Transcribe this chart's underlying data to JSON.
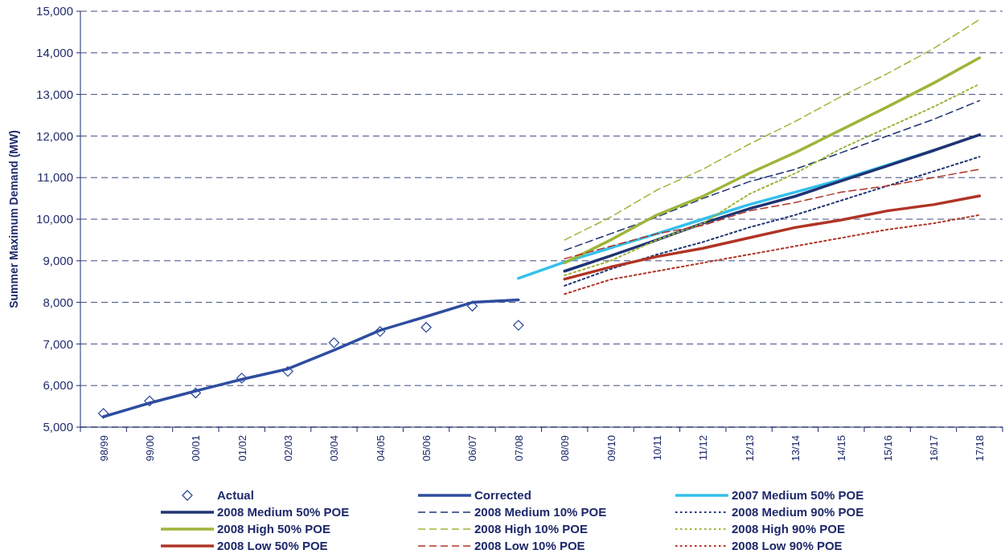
{
  "chart_data": {
    "type": "line",
    "ylabel": "Summer Maximum Demand  (MW)",
    "categories": [
      "98/99",
      "99/00",
      "00/01",
      "01/02",
      "02/03",
      "03/04",
      "04/05",
      "05/06",
      "06/07",
      "07/08",
      "08/09",
      "09/10",
      "10/11",
      "11/12",
      "12/13",
      "13/14",
      "14/15",
      "15/16",
      "16/17",
      "17/18"
    ],
    "ylim": [
      5000,
      15000
    ],
    "yticks": [
      {
        "value": 5000,
        "label": "5,000"
      },
      {
        "value": 6000,
        "label": "6,000"
      },
      {
        "value": 7000,
        "label": "7,000"
      },
      {
        "value": 8000,
        "label": "8,000"
      },
      {
        "value": 9000,
        "label": "9,000"
      },
      {
        "value": 10000,
        "label": "10,000"
      },
      {
        "value": 11000,
        "label": "11,000"
      },
      {
        "value": 12000,
        "label": "12,000"
      },
      {
        "value": 13000,
        "label": "13,000"
      },
      {
        "value": 14000,
        "label": "14,000"
      },
      {
        "value": 15000,
        "label": "15,000"
      }
    ],
    "grid": "y",
    "legend": "bottom",
    "series": [
      {
        "name": "Actual",
        "type": "scatter",
        "marker": "diamond",
        "color": "#2e4b9b",
        "values": [
          5330,
          5630,
          5820,
          6180,
          6340,
          7030,
          7300,
          7400,
          7910,
          7450,
          null,
          null,
          null,
          null,
          null,
          null,
          null,
          null,
          null,
          null
        ]
      },
      {
        "name": "Corrected",
        "color": "#2e4da0",
        "line_style": "solid",
        "values": [
          5250,
          5580,
          5870,
          6150,
          6400,
          6850,
          7330,
          7660,
          8000,
          8060,
          null,
          null,
          null,
          null,
          null,
          null,
          null,
          null,
          null,
          null
        ]
      },
      {
        "name": "2007 Medium 50% POE",
        "color": "#33c0ec",
        "line_style": "solid",
        "values": [
          null,
          null,
          null,
          null,
          null,
          null,
          null,
          null,
          null,
          8580,
          8970,
          9310,
          9650,
          10000,
          10350,
          10650,
          10950,
          11300,
          11650,
          null
        ]
      },
      {
        "name": "2008 Medium 50% POE",
        "color": "#1f3473",
        "line_style": "solid",
        "values": [
          null,
          null,
          null,
          null,
          null,
          null,
          null,
          null,
          null,
          null,
          8750,
          9120,
          9500,
          9900,
          10250,
          10550,
          10920,
          11280,
          11650,
          12030
        ]
      },
      {
        "name": "2008 Medium 10% POE",
        "color": "#1f3473",
        "line_style": "dashed",
        "values": [
          null,
          null,
          null,
          null,
          null,
          null,
          null,
          null,
          null,
          null,
          9250,
          9650,
          10050,
          10500,
          10900,
          11200,
          11600,
          12000,
          12400,
          12850
        ]
      },
      {
        "name": "2008 Medium 90% POE",
        "color": "#1f3473",
        "line_style": "dotted",
        "values": [
          null,
          null,
          null,
          null,
          null,
          null,
          null,
          null,
          null,
          null,
          8400,
          8800,
          9150,
          9450,
          9800,
          10100,
          10450,
          10800,
          11150,
          11500
        ]
      },
      {
        "name": "2008 High 50% POE",
        "color": "#9db53a",
        "line_style": "solid",
        "values": [
          null,
          null,
          null,
          null,
          null,
          null,
          null,
          null,
          null,
          null,
          8950,
          9500,
          10100,
          10550,
          11100,
          11600,
          12150,
          12700,
          13270,
          13880
        ]
      },
      {
        "name": "2008 High 10% POE",
        "color": "#9db53a",
        "line_style": "dashed",
        "values": [
          null,
          null,
          null,
          null,
          null,
          null,
          null,
          null,
          null,
          null,
          9500,
          10050,
          10700,
          11200,
          11800,
          12350,
          12950,
          13500,
          14100,
          14800
        ]
      },
      {
        "name": "2008 High 90% POE",
        "color": "#9db53a",
        "line_style": "dotted",
        "values": [
          null,
          null,
          null,
          null,
          null,
          null,
          null,
          null,
          null,
          null,
          8650,
          9000,
          9500,
          9900,
          10600,
          11100,
          11700,
          12200,
          12700,
          13250
        ]
      },
      {
        "name": "2008 Low 50% POE",
        "color": "#b03426",
        "line_style": "solid",
        "values": [
          null,
          null,
          null,
          null,
          null,
          null,
          null,
          null,
          null,
          null,
          8560,
          8850,
          9100,
          9300,
          9550,
          9800,
          9980,
          10200,
          10350,
          10560
        ]
      },
      {
        "name": "2008 Low 10% POE",
        "color": "#b03426",
        "line_style": "dashed",
        "values": [
          null,
          null,
          null,
          null,
          null,
          null,
          null,
          null,
          null,
          null,
          9050,
          9350,
          9650,
          9850,
          10200,
          10400,
          10650,
          10800,
          11000,
          11200
        ]
      },
      {
        "name": "2008 Low 90% POE",
        "color": "#b03426",
        "line_style": "dotted",
        "values": [
          null,
          null,
          null,
          null,
          null,
          null,
          null,
          null,
          null,
          null,
          8200,
          8550,
          8750,
          8950,
          9150,
          9350,
          9550,
          9750,
          9900,
          10100
        ]
      }
    ]
  }
}
